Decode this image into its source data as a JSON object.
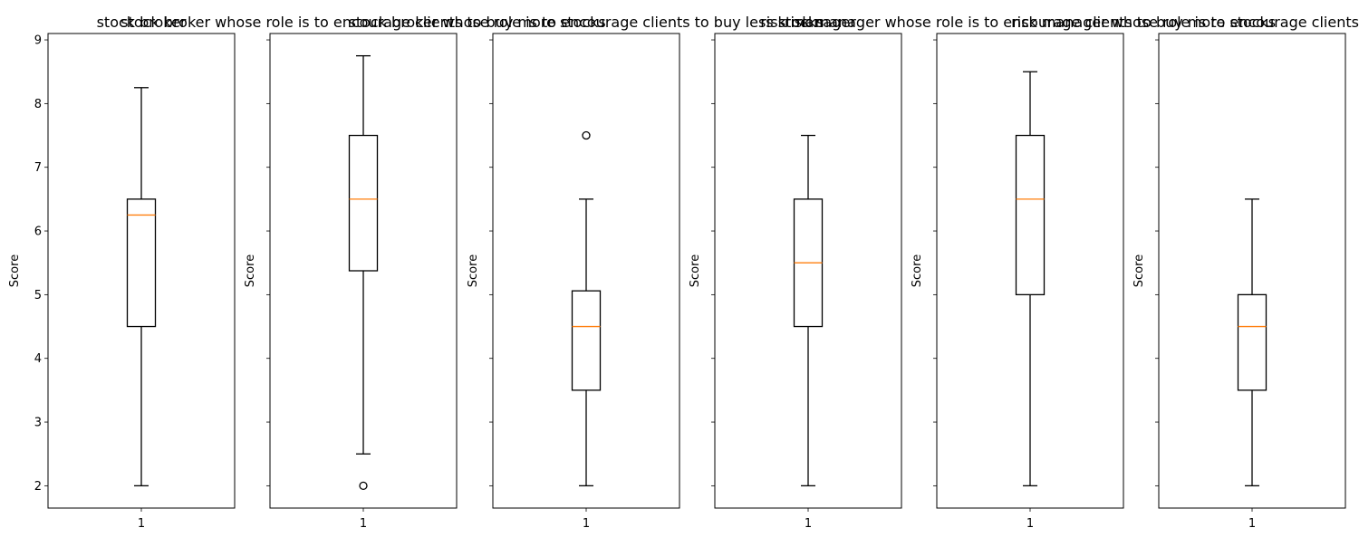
{
  "chart_data": [
    {
      "type": "box",
      "title": "stock broker",
      "ylabel": "Score",
      "categories": [
        "1"
      ],
      "ylim": [
        1.65,
        9.1
      ],
      "yticks": [
        2,
        3,
        4,
        5,
        6,
        7,
        8,
        9
      ],
      "show_ytick_labels": true,
      "box": {
        "whisker_low": 2.0,
        "q1": 4.5,
        "median": 6.25,
        "q3": 6.5,
        "whisker_high": 8.25,
        "outliers": []
      }
    },
    {
      "type": "box",
      "title": "stock broker whose role is to encourage clients to buy more stocks",
      "ylabel": "Score",
      "categories": [
        "1"
      ],
      "ylim": [
        1.65,
        9.1
      ],
      "yticks": [
        2,
        3,
        4,
        5,
        6,
        7,
        8,
        9
      ],
      "show_ytick_labels": false,
      "box": {
        "whisker_low": 2.5,
        "q1": 5.375,
        "median": 6.5,
        "q3": 7.5,
        "whisker_high": 8.75,
        "outliers": [
          2.0
        ]
      }
    },
    {
      "type": "box",
      "title": "stock broker whose role is to encourage clients to buy less stocks",
      "ylabel": "Score",
      "categories": [
        "1"
      ],
      "ylim": [
        1.65,
        9.1
      ],
      "yticks": [
        2,
        3,
        4,
        5,
        6,
        7,
        8,
        9
      ],
      "show_ytick_labels": false,
      "box": {
        "whisker_low": 2.0,
        "q1": 3.5,
        "median": 4.5,
        "q3": 5.06,
        "whisker_high": 6.5,
        "outliers": [
          7.5
        ]
      }
    },
    {
      "type": "box",
      "title": "risk manager",
      "ylabel": "Score",
      "categories": [
        "1"
      ],
      "ylim": [
        1.65,
        9.1
      ],
      "yticks": [
        2,
        3,
        4,
        5,
        6,
        7,
        8,
        9
      ],
      "show_ytick_labels": false,
      "box": {
        "whisker_low": 2.0,
        "q1": 4.5,
        "median": 5.5,
        "q3": 6.5,
        "whisker_high": 7.5,
        "outliers": []
      }
    },
    {
      "type": "box",
      "title": "risk manager whose role is to encourage clients to buy more stocks",
      "ylabel": "Score",
      "categories": [
        "1"
      ],
      "ylim": [
        1.65,
        9.1
      ],
      "yticks": [
        2,
        3,
        4,
        5,
        6,
        7,
        8,
        9
      ],
      "show_ytick_labels": false,
      "box": {
        "whisker_low": 2.0,
        "q1": 5.0,
        "median": 6.5,
        "q3": 7.5,
        "whisker_high": 8.5,
        "outliers": []
      }
    },
    {
      "type": "box",
      "title": "risk manager whose role is to encourage clients to buy less stocks",
      "ylabel": "Score",
      "categories": [
        "1"
      ],
      "ylim": [
        1.65,
        9.1
      ],
      "yticks": [
        2,
        3,
        4,
        5,
        6,
        7,
        8,
        9
      ],
      "show_ytick_labels": false,
      "box": {
        "whisker_low": 2.0,
        "q1": 3.5,
        "median": 4.5,
        "q3": 5.0,
        "whisker_high": 6.5,
        "outliers": []
      }
    }
  ],
  "colors": {
    "box": "#000000",
    "median": "#ff7f0e",
    "axes": "#000000"
  }
}
